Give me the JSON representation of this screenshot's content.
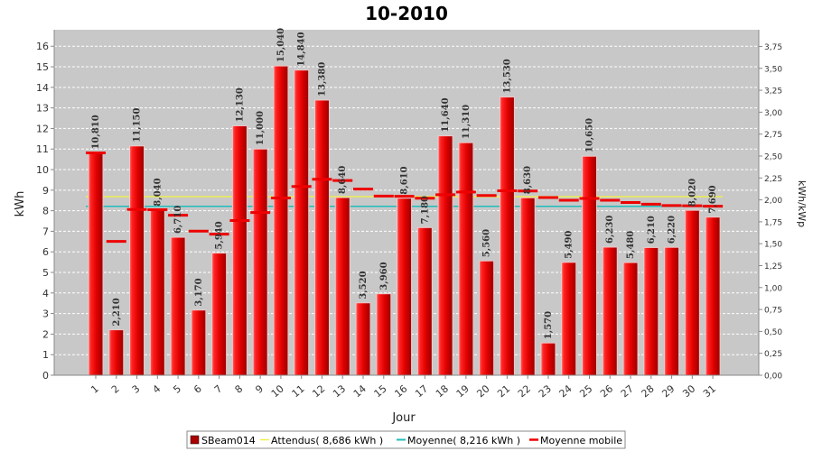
{
  "chart_data": {
    "type": "bar",
    "title": "10-2010",
    "xlabel": "Jour",
    "ylabel": "kWh",
    "y2label": "kWh/kWp",
    "ylim": [
      0,
      16.8
    ],
    "y_ticks": [
      "0",
      "1",
      "2",
      "3",
      "4",
      "5",
      "6",
      "7",
      "8",
      "9",
      "10",
      "11",
      "12",
      "13",
      "14",
      "15",
      "16"
    ],
    "y2lim": [
      0,
      3.94
    ],
    "y2_ticks": [
      "0,00",
      "0,25",
      "0,50",
      "0,75",
      "1,00",
      "1,25",
      "1,50",
      "1,75",
      "2,00",
      "2,25",
      "2,50",
      "2,75",
      "3,00",
      "3,25",
      "3,50",
      "3,75"
    ],
    "grid": true,
    "legend_position": "bottom",
    "categories": [
      "1",
      "2",
      "3",
      "4",
      "5",
      "6",
      "7",
      "8",
      "9",
      "10",
      "11",
      "12",
      "13",
      "14",
      "15",
      "16",
      "17",
      "18",
      "19",
      "20",
      "21",
      "22",
      "23",
      "24",
      "25",
      "26",
      "27",
      "28",
      "29",
      "30",
      "31"
    ],
    "series": [
      {
        "name": "SBeam014",
        "type": "bar",
        "color": "#dd0000",
        "values": [
          10.81,
          2.21,
          11.15,
          8.04,
          6.71,
          3.17,
          5.94,
          12.13,
          11.0,
          15.04,
          14.84,
          13.38,
          8.64,
          3.52,
          3.96,
          8.61,
          7.18,
          11.64,
          11.31,
          5.56,
          13.53,
          8.63,
          1.57,
          5.49,
          10.65,
          6.23,
          5.48,
          6.21,
          6.22,
          8.02,
          7.69
        ],
        "labels": [
          "10,810",
          "2,210",
          "11,150",
          "8,040",
          "6,710",
          "3,170",
          "5,940",
          "12,130",
          "11,000",
          "15,040",
          "14,840",
          "13,380",
          "8,640",
          "3,520",
          "3,960",
          "8,610",
          "7,180",
          "11,640",
          "11,310",
          "5,560",
          "13,530",
          "8,630",
          "1,570",
          "5,490",
          "10,650",
          "6,230",
          "5,480",
          "6,210",
          "6,220",
          "8,020",
          "7,690"
        ]
      },
      {
        "name": "Attendus( 8,686 kWh )",
        "type": "hline",
        "color": "#eeee55",
        "value": 8.686
      },
      {
        "name": "Moyenne( 8,216 kWh )",
        "type": "hline",
        "color": "#22bbbb",
        "value": 8.216
      },
      {
        "name": "Moyenne mobile",
        "type": "step",
        "color": "#ee0000",
        "values": [
          10.81,
          6.51,
          8.06,
          8.05,
          7.78,
          7.01,
          6.86,
          7.52,
          7.91,
          8.62,
          9.18,
          9.53,
          9.47,
          9.05,
          8.71,
          8.7,
          8.61,
          8.78,
          8.91,
          8.74,
          8.97,
          8.96,
          8.64,
          8.51,
          8.6,
          8.51,
          8.4,
          8.32,
          8.25,
          8.24,
          8.22
        ]
      }
    ]
  }
}
